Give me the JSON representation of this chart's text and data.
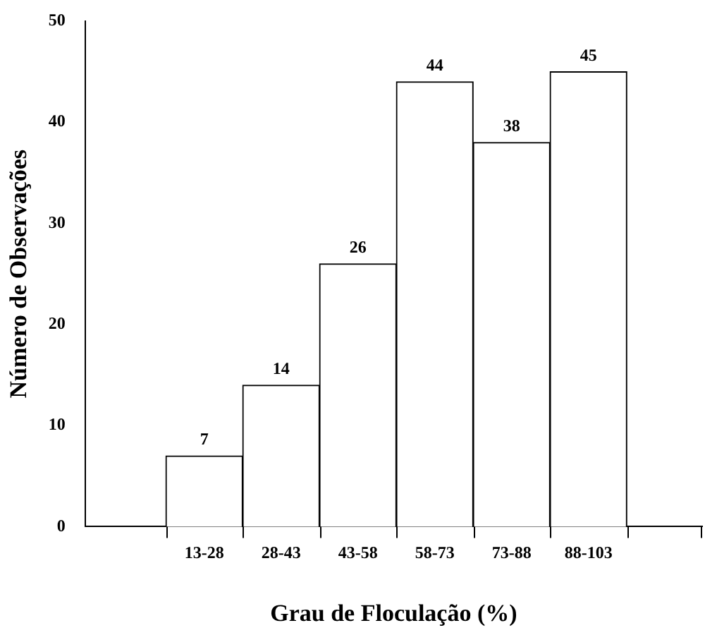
{
  "chart_data": {
    "type": "bar",
    "xlabel": "Grau de Floculação (%)",
    "ylabel": "Número de Observações",
    "categories": [
      "13-28",
      "28-43",
      "43-58",
      "58-73",
      "73-88",
      "88-103"
    ],
    "values": [
      7,
      14,
      26,
      44,
      38,
      45
    ],
    "color": "#ffffff",
    "ylim": [
      0,
      50
    ],
    "yticks": [
      0,
      10,
      20,
      30,
      40,
      50
    ],
    "grid": false,
    "legend": false,
    "data_labels": true
  }
}
